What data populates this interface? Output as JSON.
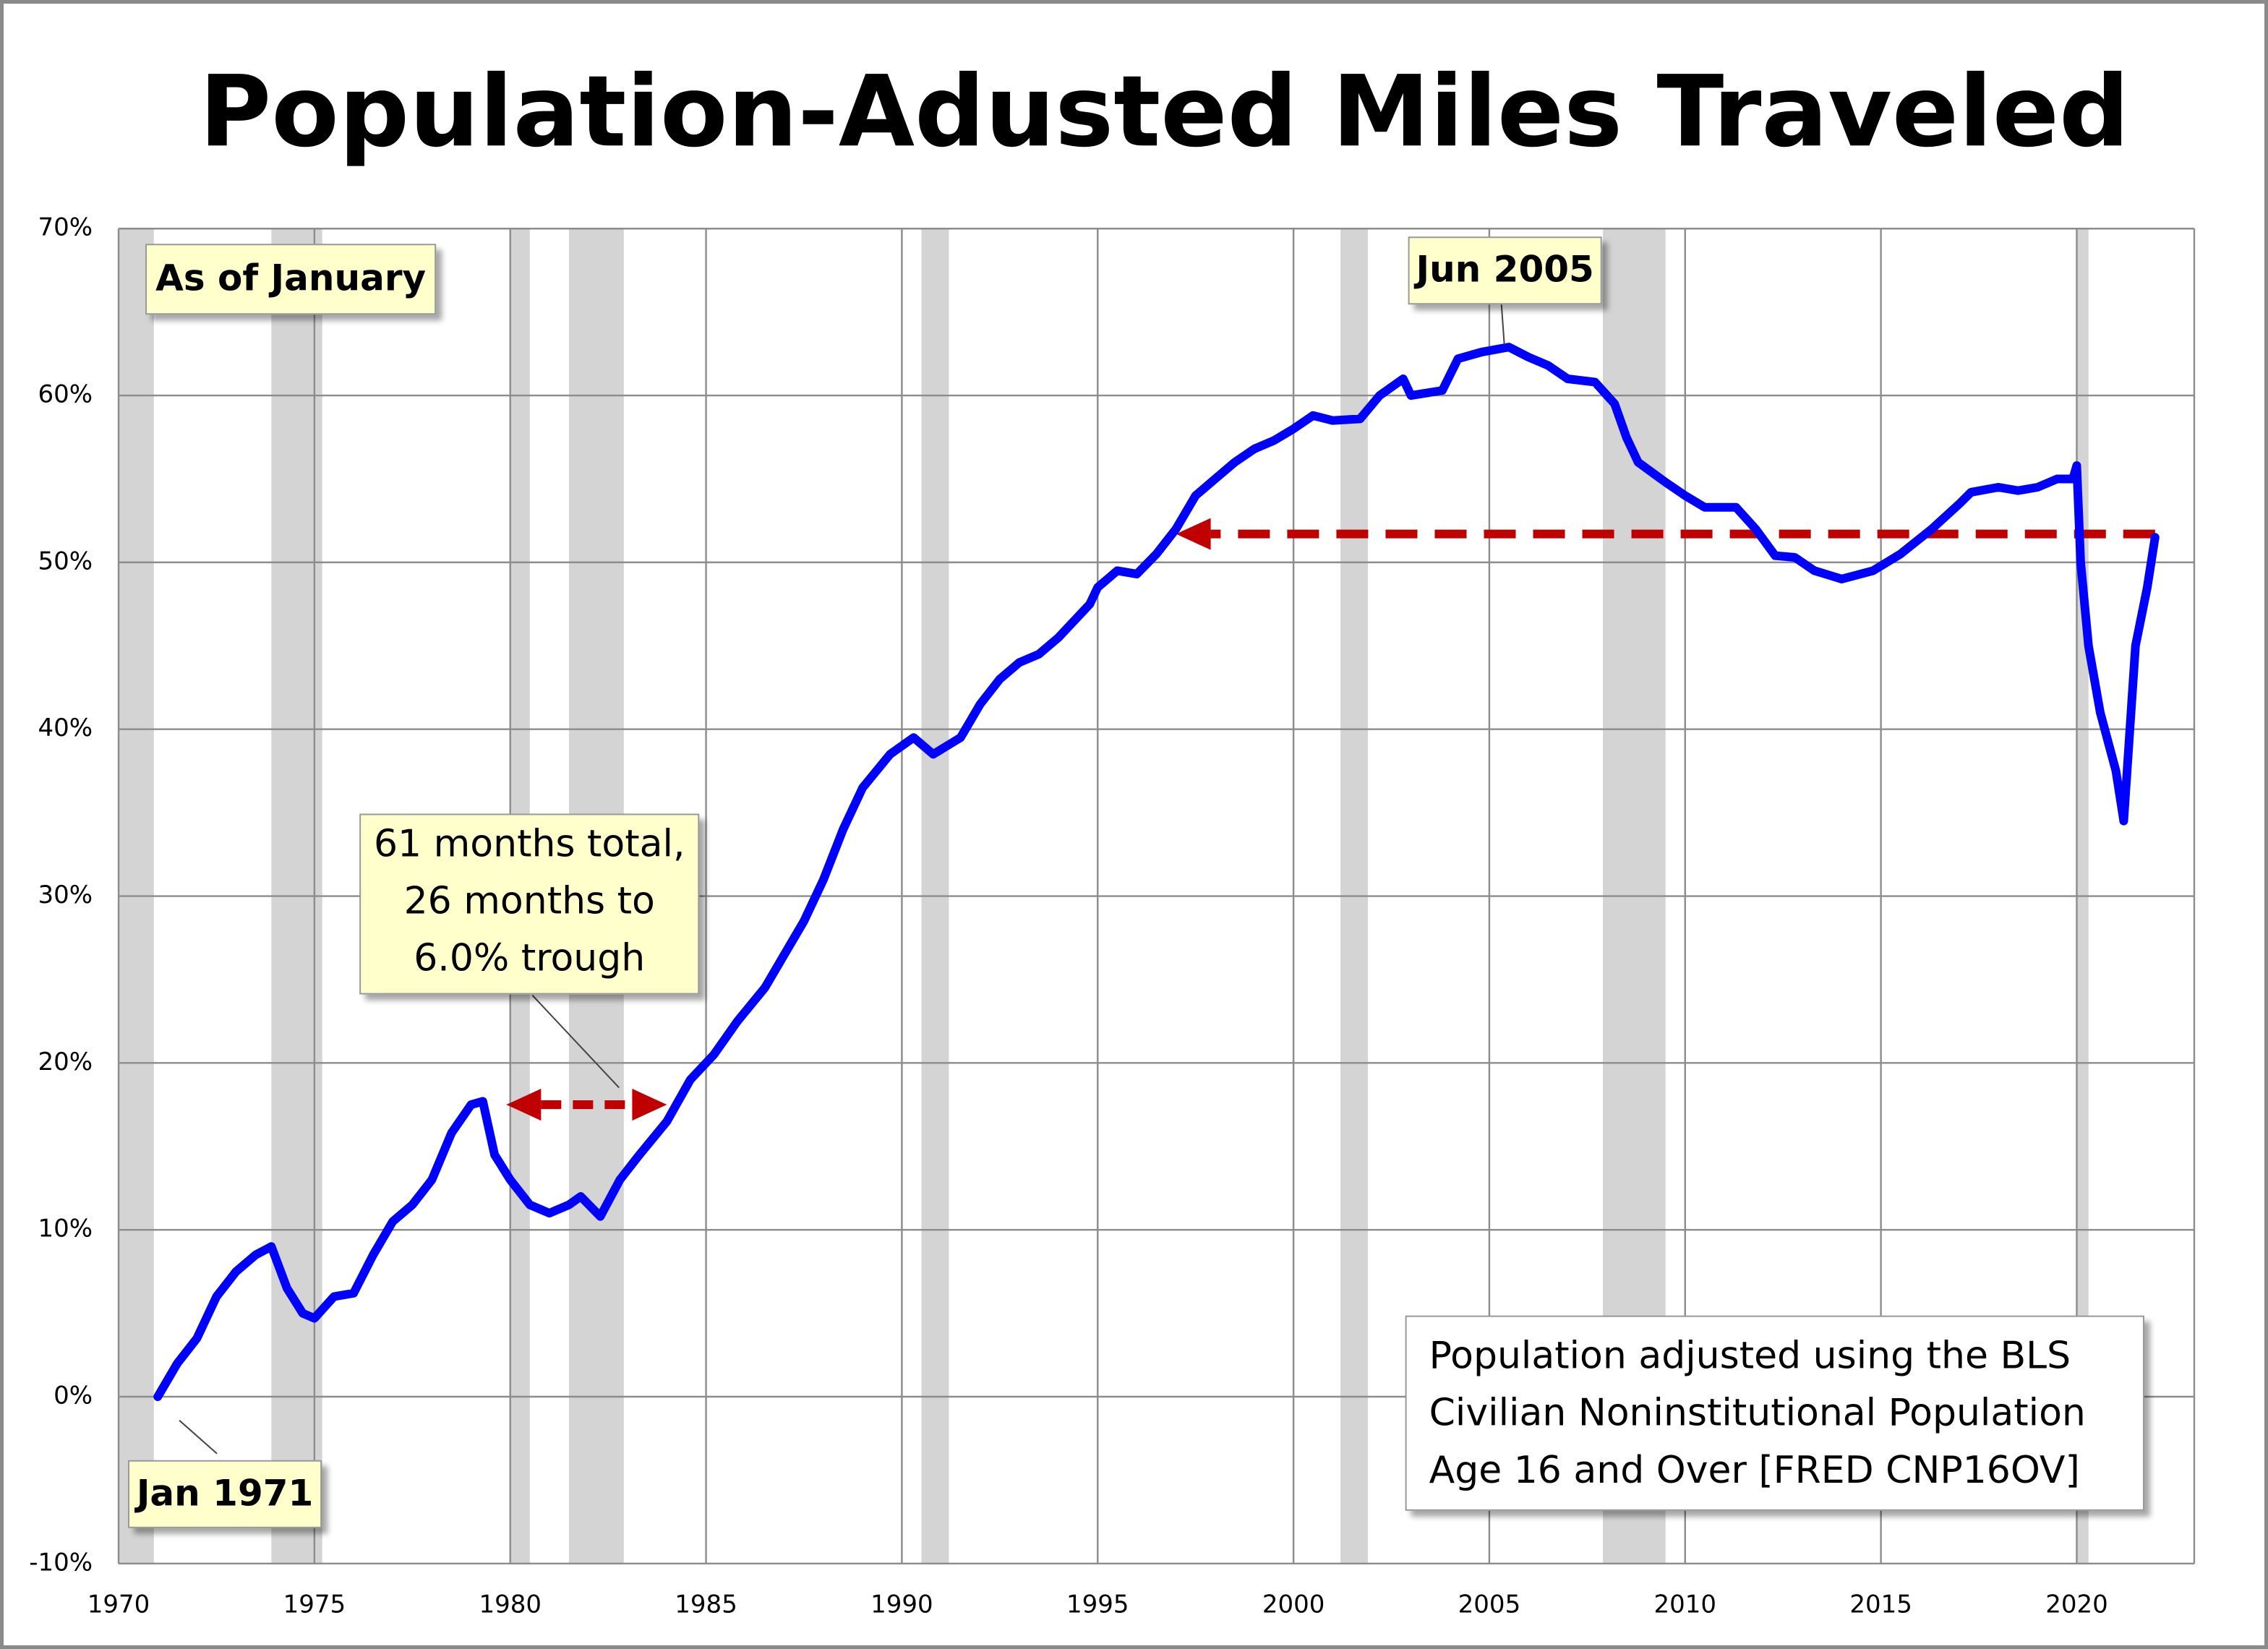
{
  "chart_data": {
    "type": "line",
    "title": "Population-Adusted Miles Traveled",
    "xlim": [
      1970,
      2023
    ],
    "ylim": [
      -10,
      70
    ],
    "xticks": [
      1970,
      1975,
      1980,
      1985,
      1990,
      1995,
      2000,
      2005,
      2010,
      2015,
      2020
    ],
    "yticks": [
      {
        "value": -10,
        "label": "-10%"
      },
      {
        "value": 0,
        "label": "0%"
      },
      {
        "value": 10,
        "label": "10%"
      },
      {
        "value": 20,
        "label": "20%"
      },
      {
        "value": 30,
        "label": "30%"
      },
      {
        "value": 40,
        "label": "40%"
      },
      {
        "value": 50,
        "label": "50%"
      },
      {
        "value": 60,
        "label": "60%"
      },
      {
        "value": 70,
        "label": "70%"
      }
    ],
    "grid": true,
    "recessions": [
      [
        1970.0,
        1970.9
      ],
      [
        1973.9,
        1975.2
      ],
      [
        1980.0,
        1980.5
      ],
      [
        1981.5,
        1982.9
      ],
      [
        1990.5,
        1991.2
      ],
      [
        2001.2,
        2001.9
      ],
      [
        2007.9,
        2009.5
      ],
      [
        2020.0,
        2020.3
      ]
    ],
    "recession_color": "#d4d4d4",
    "series": [
      {
        "color": "#0000ff",
        "x": [
          1971.0,
          1971.5,
          1972.0,
          1972.5,
          1973.0,
          1973.5,
          1973.9,
          1974.3,
          1974.7,
          1975.0,
          1975.5,
          1976.0,
          1976.5,
          1977.0,
          1977.5,
          1978.0,
          1978.5,
          1979.0,
          1979.3,
          1979.6,
          1980.0,
          1980.5,
          1981.0,
          1981.5,
          1981.8,
          1982.3,
          1982.8,
          1983.3,
          1984.0,
          1984.6,
          1985.2,
          1985.8,
          1986.5,
          1987.0,
          1987.5,
          1988.0,
          1988.5,
          1989.0,
          1989.7,
          1990.3,
          1990.8,
          1991.5,
          1992.0,
          1992.5,
          1993.0,
          1993.5,
          1994.0,
          1994.8,
          1995.0,
          1995.5,
          1996.0,
          1996.5,
          1997.0,
          1997.5,
          1998.0,
          1998.5,
          1999.0,
          1999.5,
          2000.0,
          2000.5,
          2001.0,
          2001.7,
          2002.2,
          2002.8,
          2003.0,
          2003.8,
          2004.2,
          2004.8,
          2005.5,
          2006.0,
          2006.5,
          2007.0,
          2007.7,
          2008.2,
          2008.5,
          2008.8,
          2009.5,
          2010.0,
          2010.5,
          2011.3,
          2011.8,
          2012.3,
          2012.8,
          2013.3,
          2014.0,
          2014.8,
          2015.5,
          2016.3,
          2017.0,
          2017.3,
          2018.0,
          2018.5,
          2019.0,
          2019.5,
          2019.9,
          2020.0,
          2020.1,
          2020.3,
          2020.6,
          2021.0,
          2021.2,
          2021.5,
          2021.8,
          2022.0
        ],
        "values": [
          0,
          2,
          3.5,
          6,
          7.5,
          8.5,
          9,
          6.5,
          5,
          4.7,
          6,
          6.2,
          8.5,
          10.5,
          11.5,
          13,
          15.8,
          17.5,
          17.7,
          14.5,
          13,
          11.5,
          11,
          11.5,
          12,
          10.8,
          13,
          14.5,
          16.5,
          19,
          20.5,
          22.5,
          24.5,
          26.5,
          28.5,
          31,
          34,
          36.5,
          38.5,
          39.5,
          38.5,
          39.5,
          41.5,
          43,
          44,
          44.5,
          45.5,
          47.5,
          48.5,
          49.5,
          49.3,
          50.5,
          52,
          54,
          55,
          56,
          56.8,
          57.3,
          58,
          58.8,
          58.5,
          58.6,
          60,
          61,
          60,
          60.3,
          62.2,
          62.6,
          62.9,
          62.3,
          61.8,
          61,
          60.8,
          59.5,
          57.5,
          56,
          54.8,
          54,
          53.3,
          53.3,
          52,
          50.4,
          50.3,
          49.5,
          49,
          49.5,
          50.5,
          52,
          53.5,
          54.2,
          54.5,
          54.3,
          54.5,
          55,
          55,
          55.8,
          50,
          45,
          41,
          37.5,
          34.5,
          45,
          48.5,
          51.5
        ]
      }
    ],
    "arrows": [
      {
        "x": [
          1979.9,
          1984.0
        ],
        "y": 17.5,
        "double": true,
        "color": "#c00000"
      },
      {
        "x": [
          2022.0,
          1997.0
        ],
        "y": 51.7,
        "double": false,
        "color": "#c00000"
      }
    ],
    "annotations": {
      "as_of": "As of January",
      "peak": "Jun 2005",
      "start": "Jan 1971",
      "recession_note": [
        "61 months total,",
        "26 months to",
        "6.0% trough"
      ],
      "source_note": [
        "Population adjusted using the BLS",
        "Civilian Noninstitutional Population",
        "Age 16 and Over  [FRED CNP16OV]"
      ]
    }
  }
}
